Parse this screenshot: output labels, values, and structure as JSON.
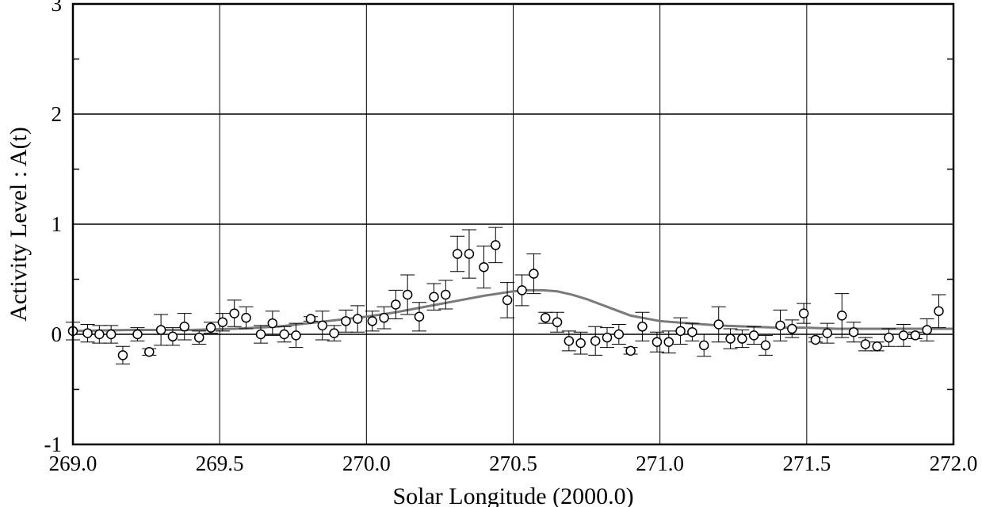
{
  "chart_data": {
    "type": "scatter",
    "title": "",
    "xlabel": "Solar Longitude (2000.0)",
    "ylabel": "Activity Level : A(t)",
    "xlim": [
      269.0,
      272.0
    ],
    "ylim": [
      -1,
      3
    ],
    "x_ticks": [
      269.0,
      269.5,
      270.0,
      270.5,
      271.0,
      271.5,
      272.0
    ],
    "x_tick_labels": [
      "269.0",
      "269.5",
      "270.0",
      "270.5",
      "271.0",
      "271.5",
      "272.0"
    ],
    "y_ticks": [
      -1,
      0,
      1,
      2,
      3
    ],
    "y_tick_labels": [
      "-1",
      "0",
      "1",
      "2",
      "3"
    ],
    "grid": true,
    "colors": {
      "model_line": "#7a7a7a",
      "markers": "#000000",
      "grid": "#000000"
    },
    "series": [
      {
        "kind": "points_with_errorbars",
        "points": [
          {
            "x": 269.0,
            "y": 0.03,
            "err": 0.08
          },
          {
            "x": 269.05,
            "y": 0.01,
            "err": 0.08
          },
          {
            "x": 269.09,
            "y": 0.0,
            "err": 0.08
          },
          {
            "x": 269.13,
            "y": 0.0,
            "err": 0.08
          },
          {
            "x": 269.17,
            "y": -0.19,
            "err": 0.08
          },
          {
            "x": 269.22,
            "y": 0.0,
            "err": 0.06
          },
          {
            "x": 269.26,
            "y": -0.16,
            "err": 0.03
          },
          {
            "x": 269.3,
            "y": 0.04,
            "err": 0.14
          },
          {
            "x": 269.34,
            "y": -0.02,
            "err": 0.08
          },
          {
            "x": 269.38,
            "y": 0.07,
            "err": 0.12
          },
          {
            "x": 269.43,
            "y": -0.03,
            "err": 0.06
          },
          {
            "x": 269.47,
            "y": 0.06,
            "err": 0.05
          },
          {
            "x": 269.51,
            "y": 0.11,
            "err": 0.08
          },
          {
            "x": 269.55,
            "y": 0.19,
            "err": 0.12
          },
          {
            "x": 269.59,
            "y": 0.15,
            "err": 0.1
          },
          {
            "x": 269.64,
            "y": 0.0,
            "err": 0.08
          },
          {
            "x": 269.68,
            "y": 0.1,
            "err": 0.11
          },
          {
            "x": 269.72,
            "y": 0.0,
            "err": 0.07
          },
          {
            "x": 269.76,
            "y": -0.01,
            "err": 0.11
          },
          {
            "x": 269.81,
            "y": 0.14,
            "err": 0.02
          },
          {
            "x": 269.85,
            "y": 0.08,
            "err": 0.13
          },
          {
            "x": 269.89,
            "y": 0.01,
            "err": 0.07
          },
          {
            "x": 269.93,
            "y": 0.12,
            "err": 0.1
          },
          {
            "x": 269.97,
            "y": 0.14,
            "err": 0.12
          },
          {
            "x": 270.02,
            "y": 0.12,
            "err": 0.09
          },
          {
            "x": 270.06,
            "y": 0.15,
            "err": 0.1
          },
          {
            "x": 270.1,
            "y": 0.27,
            "err": 0.13
          },
          {
            "x": 270.14,
            "y": 0.36,
            "err": 0.18
          },
          {
            "x": 270.18,
            "y": 0.16,
            "err": 0.13
          },
          {
            "x": 270.23,
            "y": 0.34,
            "err": 0.12
          },
          {
            "x": 270.27,
            "y": 0.36,
            "err": 0.13
          },
          {
            "x": 270.31,
            "y": 0.73,
            "err": 0.16
          },
          {
            "x": 270.35,
            "y": 0.73,
            "err": 0.22
          },
          {
            "x": 270.4,
            "y": 0.61,
            "err": 0.19
          },
          {
            "x": 270.44,
            "y": 0.81,
            "err": 0.16
          },
          {
            "x": 270.48,
            "y": 0.31,
            "err": 0.16
          },
          {
            "x": 270.53,
            "y": 0.4,
            "err": 0.14
          },
          {
            "x": 270.57,
            "y": 0.55,
            "err": 0.18
          },
          {
            "x": 270.61,
            "y": 0.15,
            "err": 0.05
          },
          {
            "x": 270.65,
            "y": 0.11,
            "err": 0.09
          },
          {
            "x": 270.69,
            "y": -0.06,
            "err": 0.09
          },
          {
            "x": 270.73,
            "y": -0.08,
            "err": 0.1
          },
          {
            "x": 270.78,
            "y": -0.06,
            "err": 0.13
          },
          {
            "x": 270.82,
            "y": -0.03,
            "err": 0.09
          },
          {
            "x": 270.86,
            "y": 0.0,
            "err": 0.09
          },
          {
            "x": 270.9,
            "y": -0.15,
            "err": 0.03
          },
          {
            "x": 270.94,
            "y": 0.07,
            "err": 0.13
          },
          {
            "x": 270.99,
            "y": -0.07,
            "err": 0.09
          },
          {
            "x": 271.03,
            "y": -0.07,
            "err": 0.1
          },
          {
            "x": 271.07,
            "y": 0.03,
            "err": 0.12
          },
          {
            "x": 271.11,
            "y": 0.02,
            "err": 0.08
          },
          {
            "x": 271.15,
            "y": -0.1,
            "err": 0.1
          },
          {
            "x": 271.2,
            "y": 0.09,
            "err": 0.16
          },
          {
            "x": 271.24,
            "y": -0.04,
            "err": 0.09
          },
          {
            "x": 271.28,
            "y": -0.04,
            "err": 0.08
          },
          {
            "x": 271.32,
            "y": -0.01,
            "err": 0.08
          },
          {
            "x": 271.36,
            "y": -0.1,
            "err": 0.09
          },
          {
            "x": 271.41,
            "y": 0.08,
            "err": 0.14
          },
          {
            "x": 271.45,
            "y": 0.05,
            "err": 0.08
          },
          {
            "x": 271.49,
            "y": 0.19,
            "err": 0.09
          },
          {
            "x": 271.53,
            "y": -0.05,
            "err": 0.02
          },
          {
            "x": 271.57,
            "y": 0.01,
            "err": 0.09
          },
          {
            "x": 271.62,
            "y": 0.17,
            "err": 0.2
          },
          {
            "x": 271.66,
            "y": 0.02,
            "err": 0.09
          },
          {
            "x": 271.7,
            "y": -0.09,
            "err": 0.06
          },
          {
            "x": 271.74,
            "y": -0.11,
            "err": 0.04
          },
          {
            "x": 271.78,
            "y": -0.03,
            "err": 0.08
          },
          {
            "x": 271.83,
            "y": -0.01,
            "err": 0.1
          },
          {
            "x": 271.87,
            "y": -0.01,
            "err": 0.03
          },
          {
            "x": 271.91,
            "y": 0.04,
            "err": 0.1
          },
          {
            "x": 271.95,
            "y": 0.21,
            "err": 0.15
          }
        ]
      },
      {
        "kind": "model_curve",
        "x": [
          269.0,
          269.2,
          269.4,
          269.55,
          269.7,
          269.8,
          269.9,
          270.0,
          270.1,
          270.2,
          270.3,
          270.4,
          270.5,
          270.55,
          270.6,
          270.65,
          270.7,
          270.75,
          270.8,
          270.85,
          270.9,
          271.0,
          271.1,
          271.2,
          271.3,
          271.4,
          271.5,
          271.6,
          271.7,
          271.8,
          271.9,
          272.0
        ],
        "y": [
          0.03,
          0.04,
          0.04,
          0.05,
          0.07,
          0.1,
          0.13,
          0.16,
          0.2,
          0.25,
          0.3,
          0.35,
          0.39,
          0.4,
          0.4,
          0.39,
          0.36,
          0.32,
          0.27,
          0.22,
          0.17,
          0.12,
          0.1,
          0.08,
          0.07,
          0.06,
          0.06,
          0.05,
          0.05,
          0.05,
          0.05,
          0.05
        ]
      }
    ]
  }
}
